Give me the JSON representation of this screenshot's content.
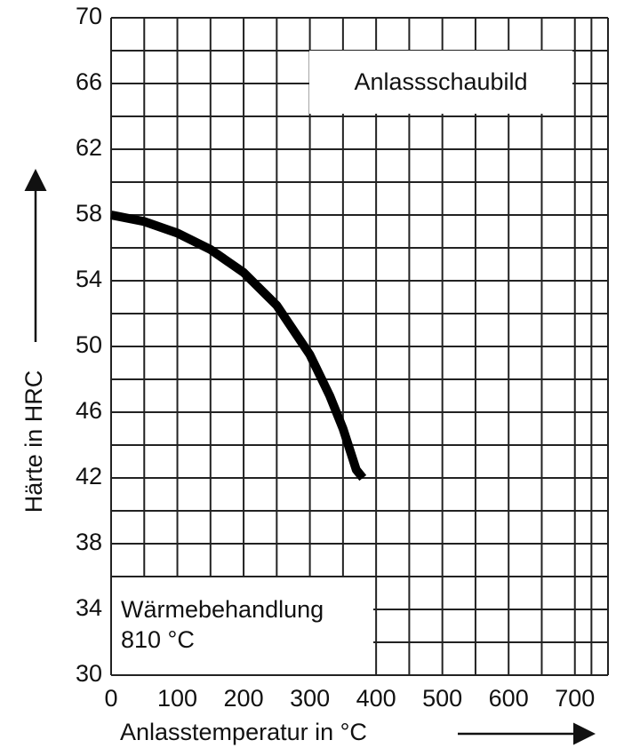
{
  "chart_data": {
    "type": "line",
    "title": "Anlassschaubild",
    "annotation": [
      "Wärmebehandlung",
      "810 °C"
    ],
    "xlabel": "Anlasstemperatur in °C",
    "ylabel": "Härte in HRC",
    "x": [
      0,
      50,
      100,
      150,
      200,
      250,
      300,
      330,
      350,
      370,
      380
    ],
    "series": [
      {
        "color": "#000000",
        "values": [
          58,
          57.6,
          56.9,
          55.9,
          54.5,
          52.5,
          49.5,
          47,
          45,
          42.5,
          42
        ]
      }
    ],
    "xlim": [
      0,
      750
    ],
    "xticks": [
      0,
      100,
      200,
      300,
      400,
      500,
      600,
      700
    ],
    "ylim": [
      30,
      70
    ],
    "yticks": [
      30,
      34,
      38,
      42,
      46,
      50,
      54,
      58,
      62,
      66,
      70
    ],
    "grid": true
  }
}
